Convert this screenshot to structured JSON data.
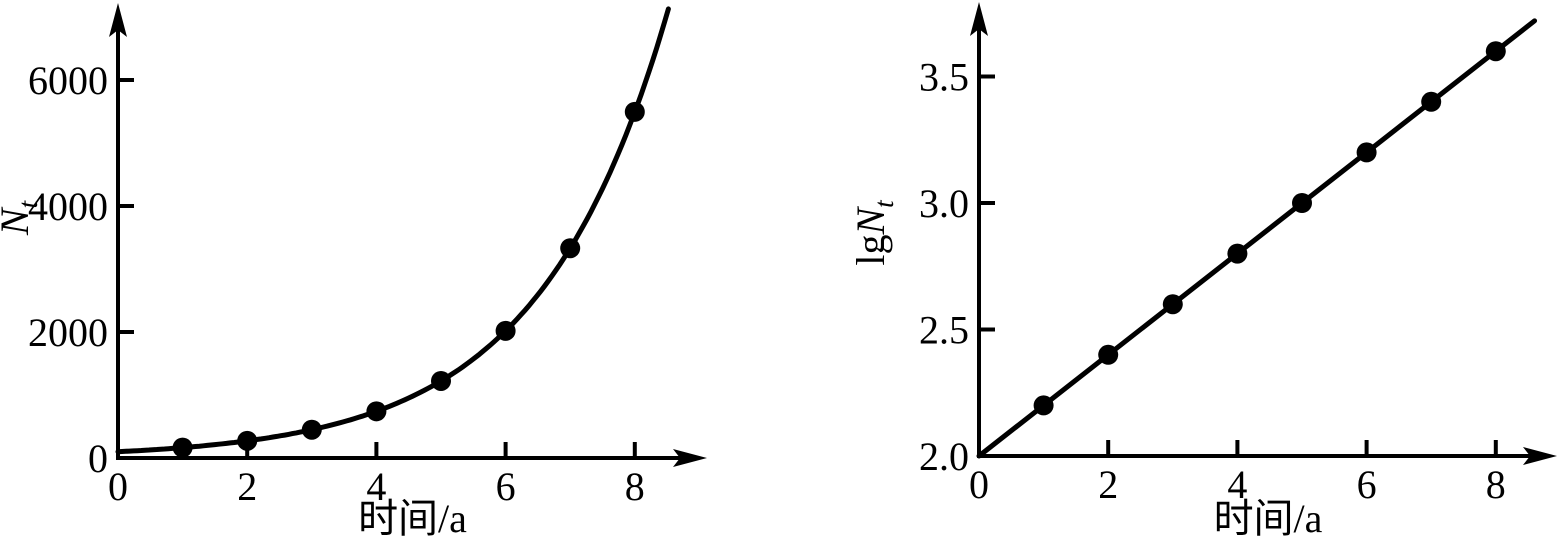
{
  "figure": {
    "background_color": "#ffffff",
    "ink_color": "#000000",
    "description": "Two-panel population growth figure: exponential curve (left) and its base-10 logarithm as a straight line (right)"
  },
  "chart_data": [
    {
      "id": "exponential",
      "type": "scatter",
      "x": [
        1,
        2,
        3,
        4,
        5,
        6,
        7,
        8
      ],
      "y": [
        165,
        272,
        449,
        741,
        1223,
        2018,
        3330,
        5494
      ],
      "curve_model": {
        "kind": "exponential",
        "N0": 100,
        "growth_factor": 1.65,
        "t_start": 0,
        "t_end": 8.52
      },
      "xlabel": "时间/a",
      "ylabel": {
        "prefix": "",
        "symbol": "N",
        "subscript": "t"
      },
      "x_ticks": [
        0,
        2,
        4,
        6,
        8
      ],
      "y_ticks": [
        0,
        2000,
        4000,
        6000
      ],
      "xlim": [
        0,
        9.1
      ],
      "ylim": [
        0,
        7200
      ],
      "x_tick_format": "int",
      "y_tick_format": "int",
      "grid": false,
      "legend": null
    },
    {
      "id": "loglinear",
      "type": "scatter",
      "x": [
        1,
        2,
        3,
        4,
        5,
        6,
        7,
        8
      ],
      "y": [
        2.2,
        2.4,
        2.6,
        2.8,
        3.0,
        3.2,
        3.4,
        3.6
      ],
      "line_model": {
        "kind": "linear",
        "x_start": 0,
        "y_start": 2.0,
        "x_end": 8.6,
        "y_end": 3.72,
        "slope": 0.2,
        "intercept": 2.0
      },
      "xlabel": "时间/a",
      "ylabel": {
        "prefix": "lg",
        "symbol": "N",
        "subscript": "t"
      },
      "x_ticks": [
        0,
        2,
        4,
        6,
        8
      ],
      "y_ticks": [
        2.0,
        2.5,
        3.0,
        3.5
      ],
      "xlim": [
        0,
        8.95
      ],
      "ylim": [
        2.0,
        3.8
      ],
      "x_tick_format": "int",
      "y_tick_format": "one-decimal",
      "grid": false,
      "legend": null
    }
  ]
}
